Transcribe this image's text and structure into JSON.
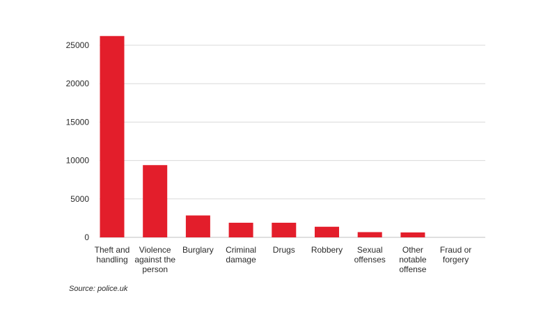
{
  "chart_data": {
    "type": "bar",
    "categories": [
      [
        "Theft and",
        "handling"
      ],
      [
        "Violence",
        "against the",
        "person"
      ],
      [
        "Burglary"
      ],
      [
        "Criminal",
        "damage"
      ],
      [
        "Drugs"
      ],
      [
        "Robbery"
      ],
      [
        "Sexual",
        "offenses"
      ],
      [
        "Other",
        "notable",
        "offense"
      ],
      [
        "Fraud or",
        "forgery"
      ]
    ],
    "values": [
      26200,
      9400,
      2850,
      1900,
      1900,
      1380,
      680,
      640,
      0
    ],
    "ylim": [
      0,
      25000
    ],
    "yticks": [
      0,
      5000,
      10000,
      15000,
      20000,
      25000
    ],
    "grid": true,
    "bar_color": "#e31e2b",
    "grid_color": "#d9d9d9"
  },
  "source": "Source: police.uk"
}
